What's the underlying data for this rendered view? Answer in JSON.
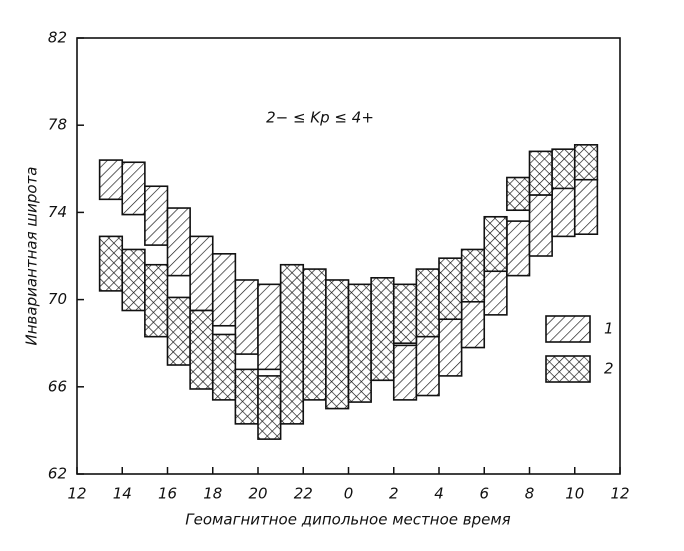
{
  "chart_data": {
    "type": "band-steps",
    "annotation": "2− ≤ Kp ≤ 4+",
    "x_label": "Геомагнитное дипольное местное время",
    "y_label": "Инвариантная широта",
    "xlim": [
      12,
      36
    ],
    "ylim": [
      62,
      82
    ],
    "xticks": [
      12,
      14,
      16,
      18,
      20,
      22,
      {
        "value": 24,
        "label": "0"
      },
      {
        "value": 26,
        "label": "2"
      },
      {
        "value": 28,
        "label": "4"
      },
      {
        "value": 30,
        "label": "6"
      },
      {
        "value": 32,
        "label": "8"
      },
      {
        "value": 34,
        "label": "10"
      },
      {
        "value": 36,
        "label": "12"
      }
    ],
    "yticks": [
      62,
      66,
      70,
      74,
      78,
      82
    ],
    "bins": [
      13,
      14,
      15,
      16,
      17,
      18,
      19,
      20,
      21,
      22,
      23,
      24,
      25,
      26,
      27,
      28,
      29,
      30,
      31,
      32,
      33,
      34,
      35
    ],
    "series": [
      {
        "name": "1",
        "color": "#111111",
        "pattern": "hatch",
        "low": [
          74.6,
          73.9,
          72.5,
          71.1,
          69.5,
          68.8,
          67.5,
          66.8,
          67.0,
          66.5,
          67.0,
          66.5,
          66.3,
          65.4,
          65.6,
          66.5,
          67.8,
          69.3,
          71.1,
          72.0,
          72.9,
          73.0
        ],
        "high": [
          76.4,
          76.3,
          75.2,
          74.2,
          72.9,
          72.1,
          70.9,
          70.7,
          70.7,
          70.0,
          69.5,
          68.8,
          69.1,
          67.9,
          69.0,
          69.7,
          70.4,
          72.3,
          73.6,
          74.8,
          75.2,
          75.5
        ]
      },
      {
        "name": "2",
        "color": "#111111",
        "pattern": "crosshatch",
        "low": [
          70.4,
          69.5,
          68.3,
          67.0,
          65.9,
          65.4,
          64.3,
          63.6,
          64.3,
          65.4,
          65.0,
          65.3,
          66.3,
          68.0,
          68.3,
          69.1,
          69.9,
          71.3,
          74.1,
          74.8,
          75.1,
          75.5
        ],
        "high": [
          72.9,
          72.3,
          71.6,
          70.1,
          69.5,
          68.4,
          66.8,
          66.5,
          71.6,
          71.4,
          70.9,
          70.7,
          71.0,
          70.7,
          71.4,
          71.9,
          72.3,
          73.8,
          75.6,
          76.8,
          76.9,
          77.1
        ]
      }
    ]
  }
}
